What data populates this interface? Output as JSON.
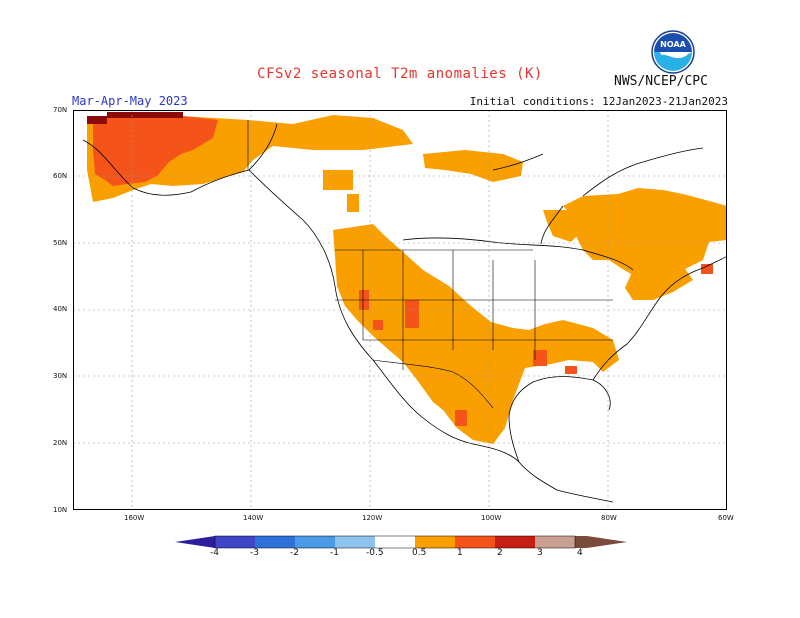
{
  "header": {
    "title": "CFSv2 seasonal T2m anomalies (K)",
    "season": "Mar-Apr-May 2023",
    "initial_conditions": "Initial conditions: 12Jan2023-21Jan2023",
    "agency": "NWS/NCEP/CPC",
    "logo_text": "NOAA"
  },
  "map": {
    "lat_labels": [
      "70N",
      "60N",
      "50N",
      "40N",
      "30N",
      "20N",
      "10N"
    ],
    "lon_labels": [
      "160W",
      "140W",
      "120W",
      "100W",
      "80W",
      "60W"
    ],
    "icons": {
      "logo": "noaa-logo-icon"
    }
  },
  "colorbar": {
    "labels": [
      "-4",
      "-3",
      "-2",
      "-1",
      "-0.5",
      "0.5",
      "1",
      "2",
      "3",
      "4"
    ],
    "colors": [
      "#2a1e9c",
      "#3e46c8",
      "#3071d9",
      "#4a9ae6",
      "#8fc3ef",
      "#ffffff",
      "#f9a000",
      "#f4541a",
      "#c61e14",
      "#8c0a0a",
      "#c9a090",
      "#7a4b3a"
    ]
  },
  "legend_colors": {
    "anomaly_05_1": "#f9a000",
    "anomaly_1_2": "#f4541a",
    "anomaly_2_3": "#c61e14",
    "anomaly_3_4": "#8c0a0a"
  }
}
